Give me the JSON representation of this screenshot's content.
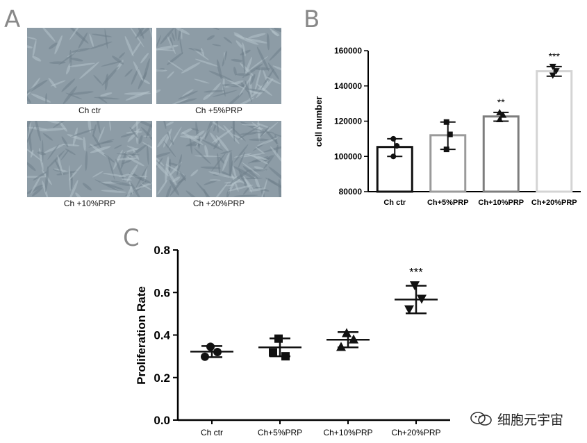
{
  "panels": {
    "a": "A",
    "b": "B",
    "c": "C"
  },
  "micrographs": [
    {
      "caption": "Ch ctr"
    },
    {
      "caption": "Ch +5%PRP"
    },
    {
      "caption": "Ch +10%PRP"
    },
    {
      "caption": "Ch +20%PRP"
    }
  ],
  "watermark": {
    "icon": "wechat-logo-icon",
    "text": "细胞元宇宙"
  },
  "chart_data": [
    {
      "type": "bar",
      "categories": [
        "Ch ctr",
        "Ch+5%PRP",
        "Ch+10%PRP",
        "Ch+20%PRP"
      ],
      "values": [
        105333,
        112000,
        122667,
        148333
      ],
      "error": [
        [
          100000,
          110000
        ],
        [
          104000,
          119500
        ],
        [
          120000,
          125000
        ],
        [
          145500,
          151000
        ]
      ],
      "points": [
        [
          110000,
          106000,
          100000
        ],
        [
          119500,
          112500,
          104000
        ],
        [
          125000,
          123500,
          121000
        ],
        [
          151000,
          148500,
          146000
        ]
      ],
      "annotations": [
        "",
        "",
        "**",
        "***"
      ],
      "ylabel": "cell number",
      "ylim": [
        80000,
        160000
      ],
      "yticks": [
        80000,
        100000,
        120000,
        140000,
        160000
      ],
      "bar_colors": [
        "#111111",
        "#9a9a9a",
        "#7d7d7d",
        "#d4d4d4"
      ]
    },
    {
      "type": "scatter",
      "categories": [
        "Ch ctr",
        "Ch+5%PRP",
        "Ch+10%PRP",
        "Ch+20%PRP"
      ],
      "means": [
        0.322,
        0.342,
        0.378,
        0.567
      ],
      "error": [
        [
          0.296,
          0.348
        ],
        [
          0.3,
          0.384
        ],
        [
          0.342,
          0.414
        ],
        [
          0.502,
          0.632
        ]
      ],
      "points": [
        [
          0.345,
          0.298,
          0.32
        ],
        [
          0.383,
          0.318,
          0.3
        ],
        [
          0.41,
          0.345,
          0.38
        ],
        [
          0.633,
          0.52,
          0.57
        ]
      ],
      "markers": [
        "circle",
        "square",
        "triangle",
        "down-triangle"
      ],
      "annotations": [
        "",
        "",
        "",
        "***"
      ],
      "ylabel": "Proliferation Rate",
      "ylim": [
        0.0,
        0.8
      ],
      "yticks": [
        "0.0",
        "0.2",
        "0.4",
        "0.6",
        "0.8"
      ]
    }
  ]
}
